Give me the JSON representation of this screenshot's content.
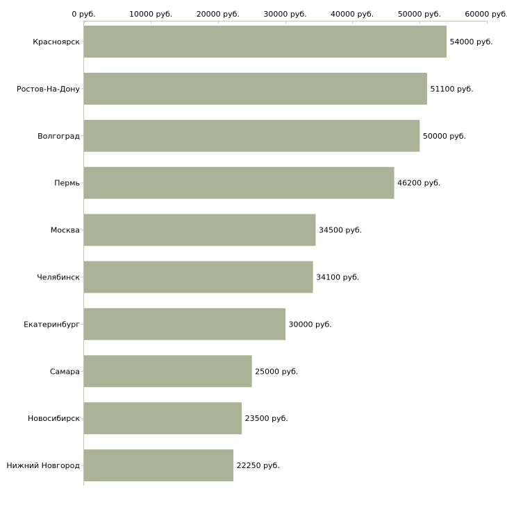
{
  "chart_data": {
    "type": "bar",
    "orientation": "horizontal",
    "title": "",
    "xlabel": "",
    "ylabel": "",
    "xlim": [
      0,
      60000
    ],
    "ticks": [
      0,
      10000,
      20000,
      30000,
      40000,
      50000,
      60000
    ],
    "tick_labels": [
      "0 руб.",
      "10000 руб.",
      "20000 руб.",
      "30000 руб.",
      "40000 руб.",
      "50000 руб.",
      "60000 руб."
    ],
    "axis_position": "top",
    "grid": false,
    "unit_suffix": " руб.",
    "bar_color": "#abb297",
    "axis_color": "#c4c4b4",
    "categories": [
      "Красноярск",
      "Ростов-На-Дону",
      "Волгоград",
      "Пермь",
      "Москва",
      "Челябинск",
      "Екатеринбург",
      "Самара",
      "Новосибирск",
      "Нижний Новгород"
    ],
    "values": [
      54000,
      51100,
      50000,
      46200,
      34500,
      34100,
      30000,
      25000,
      23500,
      22250
    ],
    "value_labels": [
      "54000 руб.",
      "51100 руб.",
      "50000 руб.",
      "46200 руб.",
      "34500 руб.",
      "34100 руб.",
      "30000 руб.",
      "25000 руб.",
      "23500 руб.",
      "22250 руб."
    ]
  }
}
